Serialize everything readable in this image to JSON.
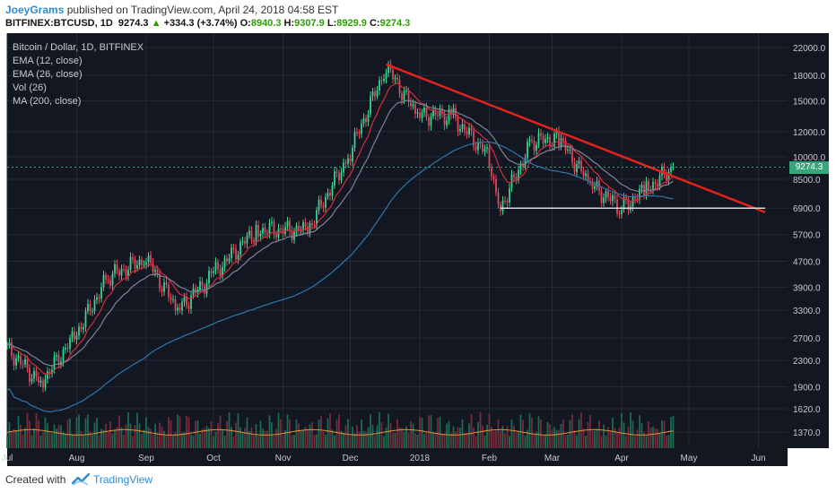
{
  "header": {
    "author": "JoeyGrams",
    "published_text": "published on TradingView.com, April 24, 2018 04:58 EST",
    "symbol": "BITFINEX:BTCUSD, 1D",
    "last_price": "9274.3",
    "change": "+334.3 (+3.74%)",
    "open_label": "O:",
    "open": "8940.3",
    "high_label": "H:",
    "high": "9307.9",
    "low_label": "L:",
    "low": "8929.9",
    "close_label": "C:",
    "close": "9274.3"
  },
  "legend": {
    "title": "Bitcoin / Dollar, 1D, BITFINEX",
    "items": [
      "EMA (12, close)",
      "EMA (26, close)",
      "Vol (26)",
      "MA (200, close)"
    ]
  },
  "price_label": "9274.3",
  "footer": {
    "created_with": "Created with",
    "brand": "TradingView"
  },
  "colors": {
    "background": "#131722",
    "grid": "#252a36",
    "up": "#3bd692",
    "down": "#e04a5f",
    "ema12": "#d62c3a",
    "ema26": "#7e8496",
    "ma200": "#2f77a8",
    "vol_ma": "#e0933a",
    "trendline": "#e0231c",
    "support": "#d7d9dc",
    "text": "#c7c9cc"
  },
  "chart_data": {
    "type": "candlestick",
    "title": "Bitcoin / Dollar, 1D, BITFINEX",
    "y_scale": "log",
    "ylim": [
      1250,
      23500
    ],
    "y_ticks": [
      "22000.0",
      "18000.0",
      "15000.0",
      "12000.0",
      "10000.0",
      "8500.0",
      "6900.0",
      "5700.0",
      "4700.0",
      "3900.0",
      "3300.0",
      "2700.0",
      "2300.0",
      "1900.0",
      "1620.0",
      "1370.0"
    ],
    "x_ticks": [
      "Jul",
      "Aug",
      "Sep",
      "Oct",
      "Nov",
      "Dec",
      "2018",
      "Feb",
      "Mar",
      "Apr",
      "May",
      "Jun"
    ],
    "x_range": [
      "2017-07-01",
      "2018-06-04"
    ],
    "series_close_monthly": [
      {
        "date": "2017-07-01",
        "close": 2500
      },
      {
        "date": "2017-07-16",
        "close": 1950
      },
      {
        "date": "2017-08-01",
        "close": 2800
      },
      {
        "date": "2017-08-15",
        "close": 4200
      },
      {
        "date": "2017-09-01",
        "close": 4800
      },
      {
        "date": "2017-09-15",
        "close": 3300
      },
      {
        "date": "2017-10-01",
        "close": 4300
      },
      {
        "date": "2017-10-20",
        "close": 5900
      },
      {
        "date": "2017-11-12",
        "close": 5900
      },
      {
        "date": "2017-11-30",
        "close": 10000
      },
      {
        "date": "2017-12-17",
        "close": 19200
      },
      {
        "date": "2017-12-31",
        "close": 13500
      },
      {
        "date": "2018-01-15",
        "close": 13500
      },
      {
        "date": "2018-01-31",
        "close": 10200
      },
      {
        "date": "2018-02-06",
        "close": 6900
      },
      {
        "date": "2018-02-20",
        "close": 11200
      },
      {
        "date": "2018-03-04",
        "close": 11400
      },
      {
        "date": "2018-03-18",
        "close": 8200
      },
      {
        "date": "2018-04-01",
        "close": 6900
      },
      {
        "date": "2018-04-12",
        "close": 7900
      },
      {
        "date": "2018-04-24",
        "close": 9274.3
      }
    ],
    "indicators": [
      "EMA (12, close)",
      "EMA (26, close)",
      "Vol (26)",
      "MA (200, close)"
    ],
    "annotations": [
      {
        "type": "trendline",
        "from": {
          "date": "2017-12-17",
          "price": 19500
        },
        "to": {
          "date": "2018-06-04",
          "price": 6700
        }
      },
      {
        "type": "horizontal",
        "from": {
          "date": "2018-02-06",
          "price": 6900
        },
        "to": {
          "date": "2018-06-04",
          "price": 6900
        }
      }
    ]
  }
}
